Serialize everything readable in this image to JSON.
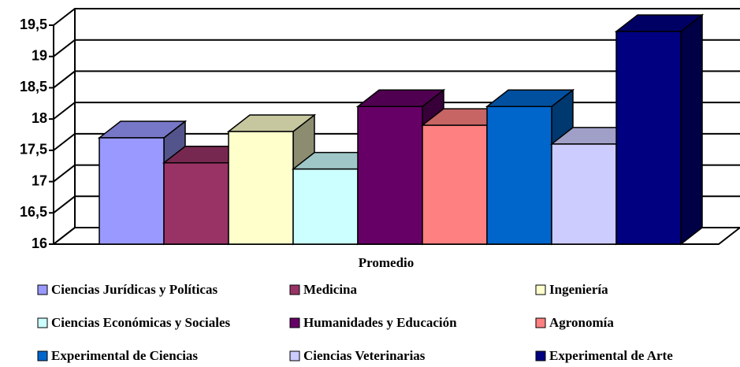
{
  "chart_data": {
    "type": "bar3d",
    "x_label": "Promedio",
    "ylim": [
      16,
      19.5
    ],
    "yticks": [
      16,
      {
        "value": 16.5,
        "label": "16,5"
      },
      17,
      {
        "value": 17.5,
        "label": "17,5"
      },
      18,
      {
        "value": 18.5,
        "label": "18,5"
      },
      19,
      {
        "value": 19.5,
        "label": "19,5"
      }
    ],
    "grid": true,
    "legend": "bottom",
    "series": [
      {
        "name": "Ciencias Jurídicas y Políticas",
        "color": "#9999ff",
        "values": [
          17.7
        ]
      },
      {
        "name": "Medicina",
        "color": "#993366",
        "values": [
          17.3
        ]
      },
      {
        "name": "Ingeniería",
        "color": "#ffffcc",
        "values": [
          17.8
        ]
      },
      {
        "name": "Ciencias Económicas y Sociales",
        "color": "#ccffff",
        "values": [
          17.2
        ]
      },
      {
        "name": "Humanidades y Educación",
        "color": "#660066",
        "values": [
          18.2
        ]
      },
      {
        "name": "Agronomía",
        "color": "#ff8080",
        "values": [
          17.9
        ]
      },
      {
        "name": "Experimental de Ciencias",
        "color": "#0066cc",
        "values": [
          18.2
        ]
      },
      {
        "name": "Ciencias Veterinarias",
        "color": "#ccccff",
        "values": [
          17.6
        ]
      },
      {
        "name": "Experimental de Arte",
        "color": "#000080",
        "values": [
          19.4
        ]
      }
    ]
  }
}
